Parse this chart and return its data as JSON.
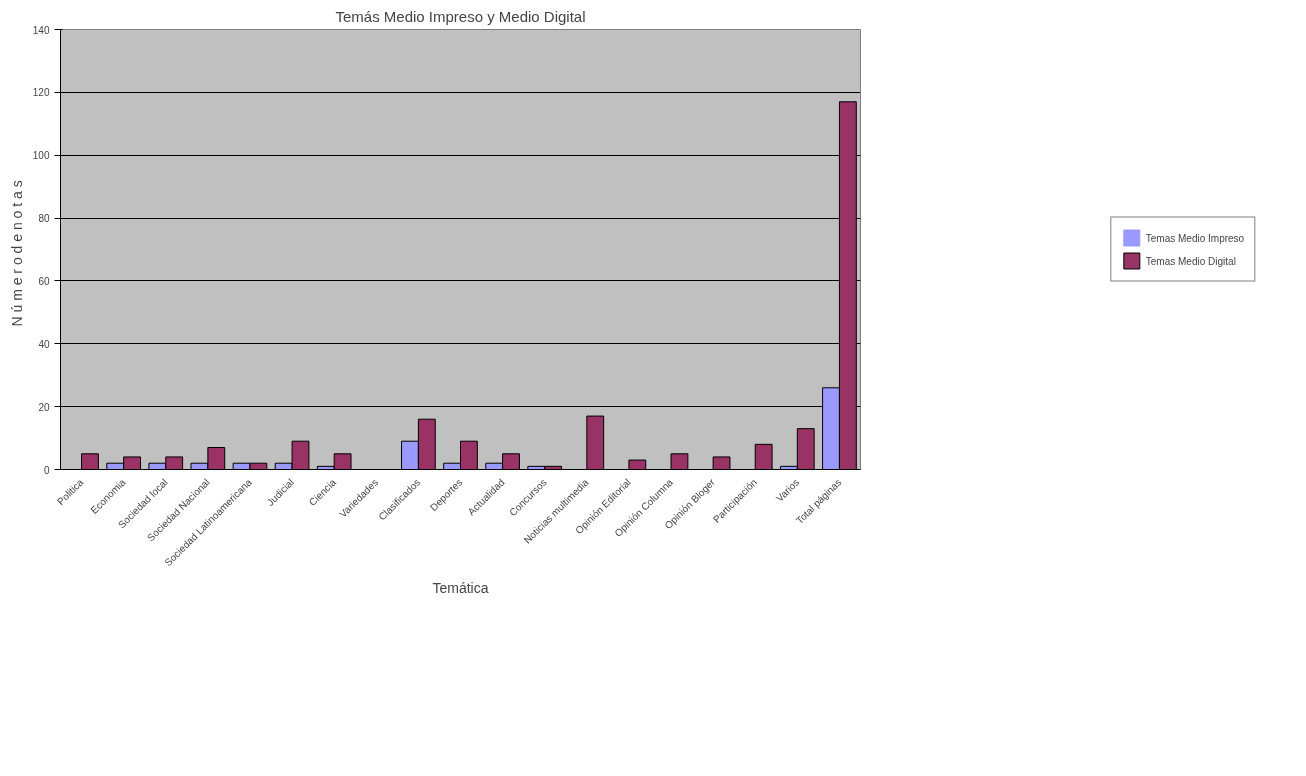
{
  "chart_data": {
    "type": "bar",
    "title": "Temás Medio Impreso y Medio Digital",
    "xlabel": "Temática",
    "ylabel": "N ú m e r o  d e  n o t a s",
    "categories": [
      "Politica",
      "Economia",
      "Sociedad local",
      "Sociedad Nacional",
      "Sociedad Latinoamericana",
      "Judicial",
      "Ciencia",
      "Variedades",
      "Clasificados",
      "Deportes",
      "Actualidad",
      "Concursos",
      "Noticias multimedia",
      "Opinión Editorial",
      "Opinión Columna",
      "Opinión Bloger",
      "Participación",
      "Varios",
      "Total páginas"
    ],
    "series": [
      {
        "name": "Temas Medio Impreso",
        "color": "#9999ff",
        "values": [
          0,
          2,
          2,
          2,
          2,
          2,
          1,
          0,
          9,
          2,
          2,
          1,
          0,
          0,
          0,
          0,
          0,
          1,
          26
        ]
      },
      {
        "name": "Temas Medio Digital",
        "color": "#993366",
        "values": [
          5,
          4,
          4,
          7,
          2,
          9,
          5,
          0,
          16,
          9,
          5,
          1,
          17,
          3,
          5,
          4,
          8,
          13,
          117
        ]
      }
    ],
    "ylim": [
      0,
      140
    ],
    "yticks": [
      0,
      20,
      40,
      60,
      80,
      100,
      120,
      140
    ],
    "grid": "y",
    "legend": "right"
  }
}
